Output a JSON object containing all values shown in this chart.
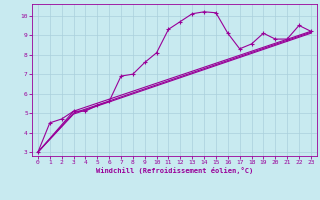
{
  "xlabel": "Windchill (Refroidissement éolien,°C)",
  "bg_color": "#c8eaf0",
  "grid_color": "#aad0dc",
  "line_color": "#990099",
  "xlim": [
    -0.5,
    23.5
  ],
  "ylim": [
    2.8,
    10.6
  ],
  "xticks": [
    0,
    1,
    2,
    3,
    4,
    5,
    6,
    7,
    8,
    9,
    10,
    11,
    12,
    13,
    14,
    15,
    16,
    17,
    18,
    19,
    20,
    21,
    22,
    23
  ],
  "yticks": [
    3,
    4,
    5,
    6,
    7,
    8,
    9,
    10
  ],
  "series1_x": [
    0,
    1,
    2,
    3,
    4,
    5,
    6,
    7,
    8,
    9,
    10,
    11,
    12,
    13,
    14,
    15,
    16,
    17,
    18,
    19,
    20,
    21,
    22,
    23
  ],
  "series1_y": [
    3.0,
    4.5,
    4.7,
    5.1,
    5.1,
    5.4,
    5.6,
    6.9,
    7.0,
    7.6,
    8.1,
    9.3,
    9.7,
    10.1,
    10.2,
    10.15,
    9.1,
    8.3,
    8.55,
    9.1,
    8.8,
    8.8,
    9.5,
    9.2
  ],
  "series2_x": [
    0,
    3,
    23
  ],
  "series2_y": [
    3.0,
    5.1,
    9.2
  ],
  "series3_x": [
    0,
    3,
    23
  ],
  "series3_y": [
    3.0,
    5.0,
    9.15
  ],
  "series4_x": [
    0,
    3,
    23
  ],
  "series4_y": [
    3.0,
    4.95,
    9.1
  ]
}
